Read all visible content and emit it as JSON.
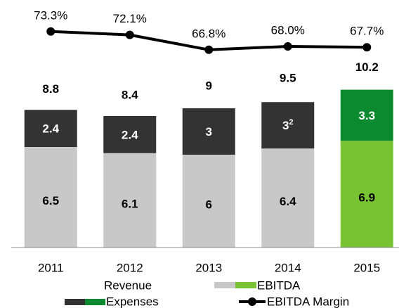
{
  "chart_data": {
    "type": "stacked-bar-line",
    "categories": [
      "2011",
      "2012",
      "2013",
      "2014",
      "2015"
    ],
    "ylim": [
      0,
      14
    ],
    "y2lim": [
      60,
      80
    ],
    "series": [
      {
        "name": "EBITDA",
        "colors": [
          "#c8c8c8",
          "#c8c8c8",
          "#c8c8c8",
          "#c8c8c8",
          "#77c332"
        ],
        "values": [
          6.5,
          6.1,
          6.0,
          6.4,
          6.9
        ]
      },
      {
        "name": "Expenses",
        "colors": [
          "#333333",
          "#333333",
          "#333333",
          "#333333",
          "#0b8a2f"
        ],
        "values": [
          2.4,
          2.4,
          3.0,
          3.0,
          3.3
        ],
        "notes": [
          null,
          null,
          null,
          "2",
          null
        ]
      },
      {
        "name": "Revenue",
        "values": [
          8.8,
          8.4,
          9.0,
          9.5,
          10.2
        ]
      },
      {
        "name": "EBITDA Margin",
        "axis": "y2",
        "color": "#000000",
        "values": [
          73.3,
          72.1,
          66.8,
          68.0,
          67.7
        ],
        "value_labels": [
          "73.3%",
          "72.1%",
          "66.8%",
          "68.0%",
          "67.7%"
        ]
      }
    ]
  }
}
